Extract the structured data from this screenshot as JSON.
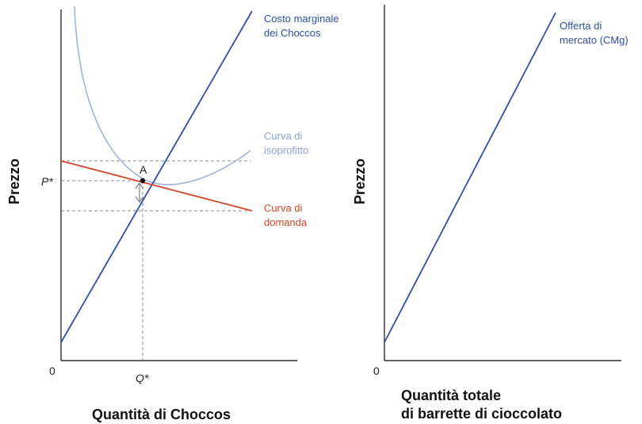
{
  "chart_data": [
    {
      "type": "line",
      "title": "",
      "xlabel": "Quantità di Choccos",
      "ylabel": "Prezzo",
      "x_ticks": [
        "0",
        "Q*"
      ],
      "y_ticks": [
        "P*"
      ],
      "point_label": "A",
      "series": [
        {
          "name": "Costo marginale dei Choccos",
          "lines": [
            "Costo marginale",
            "dei Choccos"
          ],
          "color": "#2f4fa3"
        },
        {
          "name": "Curva di isoprofitto",
          "lines": [
            "Curva di",
            "isoprofitto"
          ],
          "color": "#9fb3dc"
        },
        {
          "name": "Curva di domanda",
          "lines": [
            "Curva di",
            "domanda"
          ],
          "color": "#d2462a"
        }
      ]
    },
    {
      "type": "line",
      "title": "",
      "xlabel": "Quantità totale di barrette di cioccolato",
      "xlabel_lines": [
        "Quantità totale",
        "di barrette di cioccolato"
      ],
      "ylabel": "Prezzo",
      "x_ticks": [
        "0"
      ],
      "series": [
        {
          "name": "Offerta di mercato (CMg)",
          "lines": [
            "Offerta di",
            "mercato (CMg)"
          ],
          "color": "#2f4fa3"
        }
      ]
    }
  ]
}
